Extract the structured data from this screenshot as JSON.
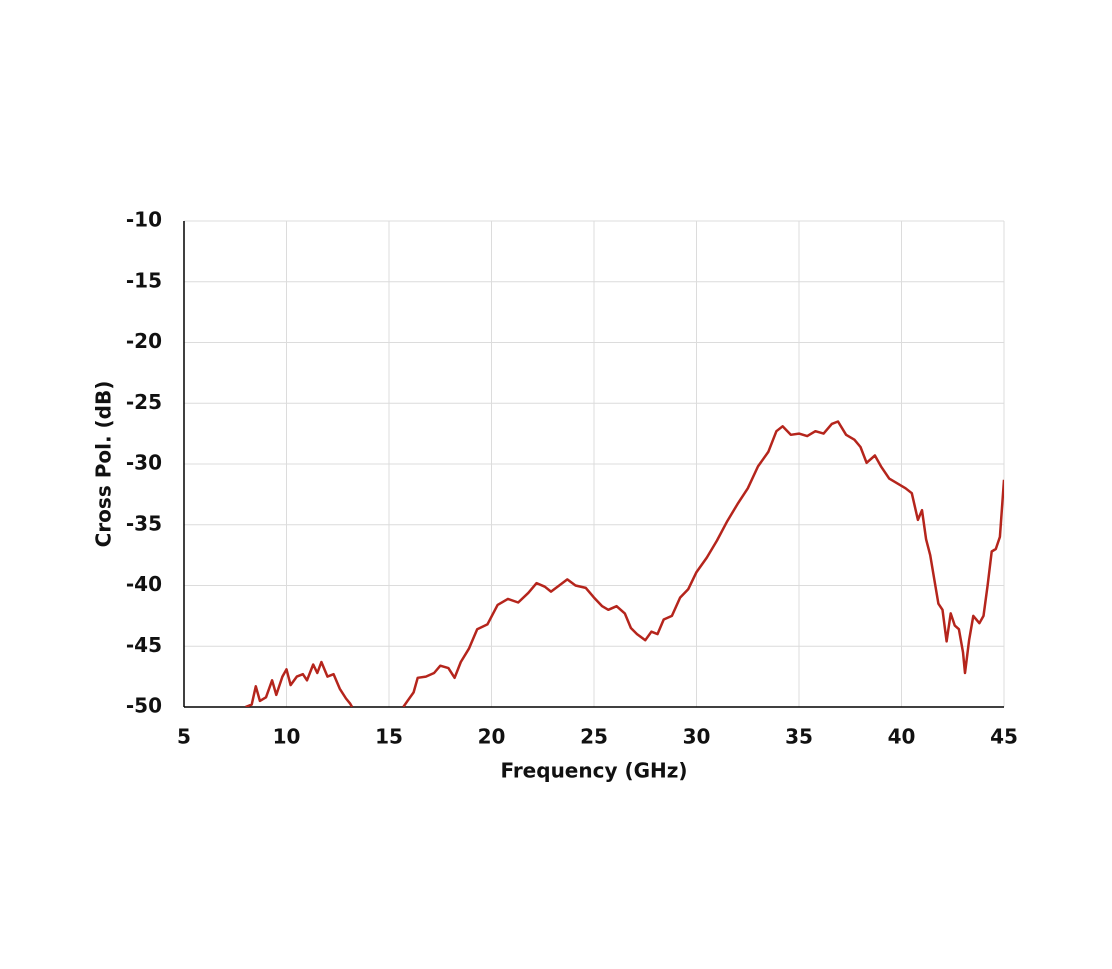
{
  "chart_data": {
    "type": "line",
    "x_label": "Frequency  (GHz)",
    "y_label": "Cross Pol. (dB)",
    "xlim": [
      5,
      45
    ],
    "xticks": [
      5,
      10,
      15,
      20,
      25,
      30,
      35,
      40,
      45
    ],
    "ylim": [
      -50,
      -10
    ],
    "yticks": [
      -10,
      -15,
      -20,
      -25,
      -30,
      -35,
      -40,
      -45,
      -50
    ],
    "grid": true,
    "series": [
      {
        "color": "#b5251c",
        "x": [
          8.0,
          8.3,
          8.5,
          8.7,
          9.0,
          9.3,
          9.5,
          9.8,
          10.0,
          10.2,
          10.5,
          10.8,
          11.0,
          11.3,
          11.5,
          11.7,
          12.0,
          12.3,
          12.6,
          12.9,
          13.1,
          13.2,
          14.5,
          15.7,
          15.9,
          16.2,
          16.4,
          16.8,
          17.2,
          17.5,
          17.9,
          18.2,
          18.5,
          18.9,
          19.3,
          19.8,
          20.3,
          20.8,
          21.3,
          21.8,
          22.2,
          22.6,
          22.9,
          23.3,
          23.7,
          24.1,
          24.6,
          25.0,
          25.4,
          25.7,
          26.1,
          26.5,
          26.8,
          27.1,
          27.5,
          27.8,
          28.1,
          28.4,
          28.8,
          29.2,
          29.6,
          30.0,
          30.5,
          31.0,
          31.5,
          32.0,
          32.5,
          33.0,
          33.5,
          33.9,
          34.2,
          34.6,
          35.0,
          35.4,
          35.8,
          36.2,
          36.6,
          36.9,
          37.3,
          37.7,
          38.0,
          38.3,
          38.7,
          39.0,
          39.4,
          39.8,
          40.2,
          40.5,
          40.8,
          41.0,
          41.2,
          41.4,
          41.6,
          41.8,
          42.0,
          42.2,
          42.4,
          42.6,
          42.8,
          43.0,
          43.1,
          43.3,
          43.5,
          43.8,
          44.0,
          44.2,
          44.4,
          44.6,
          44.8,
          45.0
        ],
        "values": [
          -50,
          -49.8,
          -48.3,
          -49.5,
          -49.2,
          -47.8,
          -49,
          -47.5,
          -46.9,
          -48.2,
          -47.5,
          -47.3,
          -47.8,
          -46.5,
          -47.2,
          -46.3,
          -47.5,
          -47.3,
          -48.5,
          -49.3,
          -49.7,
          -50,
          null,
          -50,
          -49.5,
          -48.8,
          -47.6,
          -47.5,
          -47.2,
          -46.6,
          -46.8,
          -47.6,
          -46.3,
          -45.2,
          -43.6,
          -43.2,
          -41.6,
          -41.1,
          -41.4,
          -40.6,
          -39.8,
          -40.1,
          -40.5,
          -40.0,
          -39.5,
          -40.0,
          -40.2,
          -41.0,
          -41.7,
          -42.0,
          -41.7,
          -42.3,
          -43.5,
          -44.0,
          -44.5,
          -43.8,
          -44.0,
          -42.8,
          -42.5,
          -41.0,
          -40.3,
          -38.9,
          -37.7,
          -36.3,
          -34.7,
          -33.3,
          -32.0,
          -30.2,
          -29.0,
          -27.3,
          -26.9,
          -27.6,
          -27.5,
          -27.7,
          -27.3,
          -27.5,
          -26.7,
          -26.5,
          -27.6,
          -28.0,
          -28.6,
          -29.9,
          -29.3,
          -30.2,
          -31.2,
          -31.6,
          -32.0,
          -32.4,
          -34.6,
          -33.8,
          -36.2,
          -37.5,
          -39.5,
          -41.5,
          -42.0,
          -44.6,
          -42.3,
          -43.3,
          -43.6,
          -45.5,
          -47.2,
          -44.5,
          -42.5,
          -43.1,
          -42.5,
          -40.0,
          -37.2,
          -37.0,
          -36.0,
          -31.3
        ]
      }
    ]
  }
}
